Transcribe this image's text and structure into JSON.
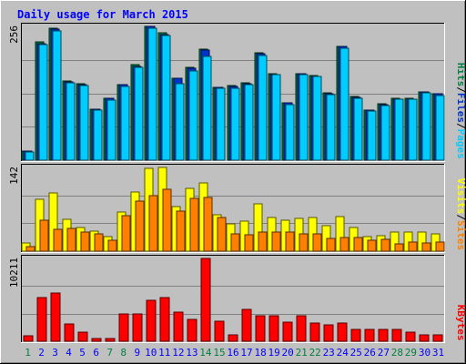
{
  "chart_data": {
    "type": "bar",
    "title": "Daily usage for March 2015",
    "categories": [
      "1",
      "2",
      "3",
      "4",
      "5",
      "6",
      "7",
      "8",
      "9",
      "10",
      "11",
      "12",
      "13",
      "14",
      "15",
      "16",
      "17",
      "18",
      "19",
      "20",
      "21",
      "22",
      "23",
      "24",
      "25",
      "26",
      "27",
      "28",
      "29",
      "30",
      "31"
    ],
    "weekend_days": [
      "1",
      "7",
      "8",
      "14",
      "15",
      "21",
      "22",
      "28",
      "29"
    ],
    "panels": [
      {
        "id": "top",
        "max_label": "256",
        "ylim": [
          0,
          256
        ],
        "label_parts": [
          {
            "text": "Pages",
            "color": "#00ccff"
          },
          {
            "text": "/",
            "color": "#000000"
          },
          {
            "text": "Files",
            "color": "#0033cc"
          },
          {
            "text": "/",
            "color": "#000000"
          },
          {
            "text": "Hits",
            "color": "#008040"
          }
        ],
        "series": [
          {
            "name": "Hits",
            "color": "#008040",
            "values": [
              17,
              226,
              252,
              151,
              146,
              98,
              118,
              145,
              182,
              256,
              243,
              157,
              177,
              213,
              140,
              142,
              148,
              206,
              166,
              110,
              166,
              162,
              129,
              218,
              122,
              96,
              108,
              118,
              118,
              131,
              128
            ]
          },
          {
            "name": "Files",
            "color": "#0033cc",
            "values": [
              17,
              223,
              250,
              150,
              145,
              97,
              118,
              144,
              180,
              256,
              241,
              156,
              176,
              210,
              140,
              141,
              147,
              203,
              164,
              110,
              165,
              161,
              128,
              217,
              121,
              95,
              107,
              117,
              117,
              130,
              127
            ]
          },
          {
            "name": "Pages",
            "color": "#00ccff",
            "values": [
              15,
              221,
              247,
              148,
              143,
              95,
              115,
              141,
              178,
              252,
              239,
              147,
              170,
              199,
              137,
              138,
              145,
              200,
              163,
              106,
              163,
              160,
              126,
              214,
              119,
              94,
              105,
              116,
              116,
              129,
              124
            ]
          }
        ]
      },
      {
        "id": "middle",
        "max_label": "142",
        "ylim": [
          0,
          142
        ],
        "label_parts": [
          {
            "text": "Sites",
            "color": "#ff8000"
          },
          {
            "text": "/",
            "color": "#000000"
          },
          {
            "text": "Visits",
            "color": "#ffff00"
          }
        ],
        "series": [
          {
            "name": "Visits",
            "color": "#ffff00",
            "values": [
              14,
              88,
              99,
              54,
              40,
              34,
              24,
              66,
              100,
              140,
              142,
              76,
              107,
              115,
              62,
              47,
              51,
              81,
              57,
              52,
              56,
              57,
              43,
              58,
              40,
              25,
              26,
              32,
              32,
              32,
              29
            ]
          },
          {
            "name": "Sites",
            "color": "#ff8000",
            "values": [
              8,
              53,
              37,
              38,
              32,
              29,
              18,
              60,
              85,
              94,
              105,
              68,
              89,
              91,
              57,
              29,
              28,
              33,
              33,
              32,
              30,
              29,
              22,
              23,
              23,
              19,
              20,
              13,
              15,
              14,
              15
            ]
          }
        ]
      },
      {
        "id": "bottom",
        "max_label": "10211",
        "ylim": [
          0,
          10211
        ],
        "label_parts": [
          {
            "text": "KBytes",
            "color": "#ff0000"
          }
        ],
        "series": [
          {
            "name": "KBytes",
            "color": "#ff0000",
            "values": [
              690,
              5330,
              5990,
              2080,
              1080,
              310,
              370,
              3420,
              3320,
              5070,
              5440,
              3580,
              2710,
              10211,
              2490,
              740,
              3890,
              3090,
              3150,
              2320,
              3120,
              2210,
              2000,
              2210,
              1420,
              1410,
              1440,
              1420,
              1110,
              790,
              830
            ]
          }
        ]
      }
    ],
    "colors": {
      "background": "#c0c0c0",
      "plot_background": "#c0c0c0",
      "title": "#0000ff",
      "axis_text": "#000000",
      "weekday_label": "#0000ff",
      "weekend_label": "#008040",
      "gridline": "#808080"
    }
  }
}
